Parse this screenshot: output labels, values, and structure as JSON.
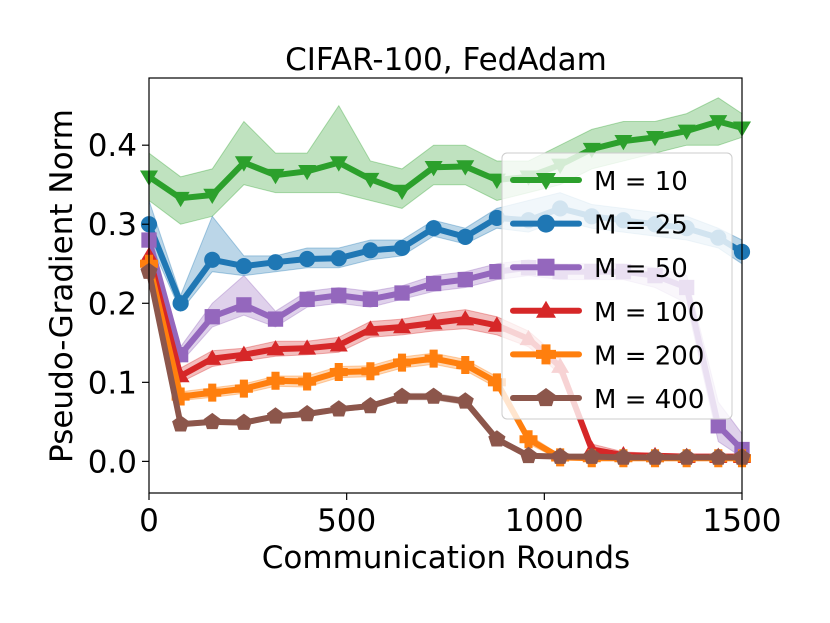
{
  "chart_data": {
    "type": "line",
    "title": "CIFAR-100, FedAdam",
    "xlabel": "Communication Rounds",
    "ylabel": "Pseudo-Gradient Norm",
    "xlim": [
      0,
      1500
    ],
    "ylim": [
      -0.04,
      0.485
    ],
    "xticks": [
      0,
      500,
      1000,
      1500
    ],
    "xtick_labels": [
      "0",
      "500",
      "1000",
      "1500"
    ],
    "yticks": [
      0.0,
      0.1,
      0.2,
      0.3,
      0.4
    ],
    "ytick_labels": [
      "0.0",
      "0.1",
      "0.2",
      "0.3",
      "0.4"
    ],
    "grid": false,
    "legend_position": "right",
    "x": [
      0,
      80,
      160,
      240,
      320,
      400,
      480,
      560,
      640,
      720,
      800,
      880,
      960,
      1040,
      1120,
      1200,
      1280,
      1360,
      1440,
      1500
    ],
    "series": [
      {
        "name": "M = 10",
        "color": "#2ca02c",
        "marker": "triangle-down",
        "values": [
          0.36,
          0.333,
          0.337,
          0.378,
          0.362,
          0.367,
          0.378,
          0.357,
          0.342,
          0.372,
          0.373,
          0.356,
          0.36,
          0.375,
          0.395,
          0.405,
          0.41,
          0.418,
          0.43,
          0.422
        ],
        "band_low": [
          0.33,
          0.3,
          0.31,
          0.35,
          0.34,
          0.34,
          0.34,
          0.33,
          0.32,
          0.35,
          0.35,
          0.33,
          0.34,
          0.35,
          0.37,
          0.38,
          0.39,
          0.4,
          0.4,
          0.41
        ],
        "band_high": [
          0.39,
          0.36,
          0.37,
          0.43,
          0.39,
          0.39,
          0.45,
          0.38,
          0.37,
          0.4,
          0.4,
          0.38,
          0.38,
          0.4,
          0.42,
          0.43,
          0.43,
          0.44,
          0.46,
          0.44
        ]
      },
      {
        "name": "M = 25",
        "color": "#1f77b4",
        "marker": "circle",
        "values": [
          0.3,
          0.2,
          0.255,
          0.247,
          0.252,
          0.256,
          0.257,
          0.267,
          0.27,
          0.295,
          0.284,
          0.308,
          0.305,
          0.32,
          0.31,
          0.305,
          0.3,
          0.295,
          0.283,
          0.265
        ],
        "band_low": [
          0.28,
          0.19,
          0.24,
          0.235,
          0.24,
          0.245,
          0.245,
          0.255,
          0.26,
          0.285,
          0.275,
          0.295,
          0.29,
          0.305,
          0.295,
          0.29,
          0.285,
          0.28,
          0.27,
          0.25
        ],
        "band_high": [
          0.33,
          0.21,
          0.31,
          0.26,
          0.26,
          0.27,
          0.27,
          0.28,
          0.28,
          0.305,
          0.295,
          0.32,
          0.33,
          0.34,
          0.325,
          0.32,
          0.315,
          0.31,
          0.295,
          0.28
        ]
      },
      {
        "name": "M = 50",
        "color": "#9467bd",
        "marker": "square",
        "values": [
          0.28,
          0.135,
          0.183,
          0.198,
          0.18,
          0.205,
          0.21,
          0.205,
          0.213,
          0.225,
          0.23,
          0.24,
          0.245,
          0.24,
          0.24,
          0.24,
          0.235,
          0.22,
          0.045,
          0.015
        ],
        "band_low": [
          0.265,
          0.125,
          0.17,
          0.185,
          0.17,
          0.195,
          0.2,
          0.195,
          0.205,
          0.215,
          0.22,
          0.23,
          0.235,
          0.23,
          0.23,
          0.23,
          0.22,
          0.2,
          0.025,
          0.005
        ],
        "band_high": [
          0.295,
          0.145,
          0.2,
          0.235,
          0.19,
          0.215,
          0.22,
          0.215,
          0.222,
          0.235,
          0.24,
          0.25,
          0.255,
          0.25,
          0.25,
          0.25,
          0.245,
          0.235,
          0.075,
          0.035
        ]
      },
      {
        "name": "M = 100",
        "color": "#d62728",
        "marker": "triangle-up",
        "values": [
          0.26,
          0.108,
          0.13,
          0.135,
          0.142,
          0.143,
          0.147,
          0.167,
          0.17,
          0.175,
          0.18,
          0.172,
          0.155,
          0.12,
          0.015,
          0.008,
          0.007,
          0.006,
          0.006,
          0.006
        ],
        "band_low": [
          0.25,
          0.1,
          0.12,
          0.127,
          0.133,
          0.135,
          0.138,
          0.157,
          0.16,
          0.165,
          0.168,
          0.16,
          0.145,
          0.11,
          0.01,
          0.005,
          0.004,
          0.004,
          0.004,
          0.004
        ],
        "band_high": [
          0.27,
          0.118,
          0.14,
          0.143,
          0.152,
          0.152,
          0.157,
          0.177,
          0.18,
          0.187,
          0.192,
          0.183,
          0.165,
          0.13,
          0.022,
          0.012,
          0.01,
          0.009,
          0.009,
          0.009
        ]
      },
      {
        "name": "M = 200",
        "color": "#ff7f0e",
        "marker": "plus",
        "values": [
          0.25,
          0.082,
          0.087,
          0.092,
          0.102,
          0.101,
          0.113,
          0.114,
          0.125,
          0.13,
          0.122,
          0.1,
          0.028,
          0.005,
          0.004,
          0.004,
          0.004,
          0.004,
          0.004,
          0.004
        ],
        "band_low": [
          0.24,
          0.077,
          0.081,
          0.086,
          0.095,
          0.094,
          0.106,
          0.107,
          0.118,
          0.123,
          0.115,
          0.093,
          0.022,
          0.002,
          0.002,
          0.002,
          0.002,
          0.002,
          0.002,
          0.002
        ],
        "band_high": [
          0.26,
          0.088,
          0.093,
          0.098,
          0.108,
          0.108,
          0.12,
          0.121,
          0.132,
          0.137,
          0.129,
          0.107,
          0.034,
          0.008,
          0.006,
          0.006,
          0.006,
          0.006,
          0.006,
          0.006
        ]
      },
      {
        "name": "M = 400",
        "color": "#8c564b",
        "marker": "pentagon",
        "values": [
          0.24,
          0.047,
          0.05,
          0.049,
          0.057,
          0.06,
          0.066,
          0.07,
          0.082,
          0.082,
          0.076,
          0.028,
          0.007,
          0.006,
          0.006,
          0.005,
          0.005,
          0.005,
          0.005,
          0.005
        ],
        "band_low": [
          0.23,
          0.044,
          0.047,
          0.046,
          0.054,
          0.057,
          0.063,
          0.067,
          0.078,
          0.078,
          0.072,
          0.025,
          0.005,
          0.004,
          0.004,
          0.003,
          0.003,
          0.003,
          0.003,
          0.003
        ],
        "band_high": [
          0.25,
          0.05,
          0.053,
          0.052,
          0.06,
          0.063,
          0.069,
          0.073,
          0.086,
          0.086,
          0.08,
          0.031,
          0.009,
          0.008,
          0.008,
          0.007,
          0.007,
          0.007,
          0.007,
          0.007
        ]
      }
    ]
  }
}
